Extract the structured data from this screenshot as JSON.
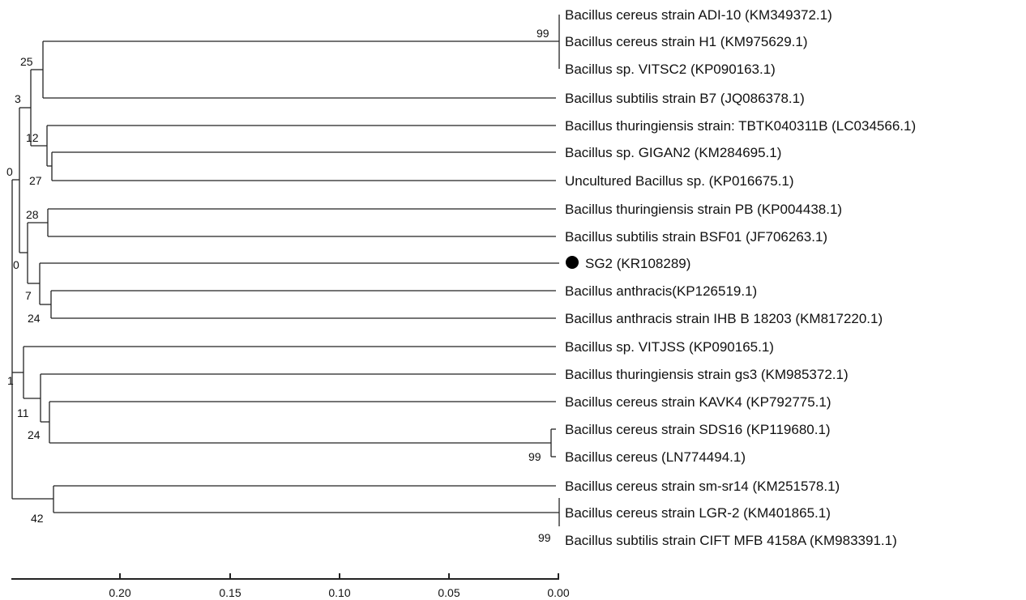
{
  "tree": {
    "leaves": [
      {
        "label": "Bacillus cereus strain ADI-10 (KM349372.1)"
      },
      {
        "label": "Bacillus cereus strain H1 (KM975629.1)"
      },
      {
        "label": "Bacillus sp. VITSC2 (KP090163.1)"
      },
      {
        "label": "Bacillus subtilis strain B7 (JQ086378.1)"
      },
      {
        "label": "Bacillus thuringiensis strain: TBTK040311B (LC034566.1)"
      },
      {
        "label": "Bacillus sp. GIGAN2 (KM284695.1)"
      },
      {
        "label": "Uncultured Bacillus sp. (KP016675.1)"
      },
      {
        "label": "Bacillus thuringiensis strain PB (KP004438.1)"
      },
      {
        "label": "Bacillus subtilis strain BSF01 (JF706263.1)"
      },
      {
        "label": "SG2 (KR108289)",
        "marker": "filled-circle"
      },
      {
        "label": "Bacillus anthracis(KP126519.1)"
      },
      {
        "label": "Bacillus anthracis strain IHB B 18203 (KM817220.1)"
      },
      {
        "label": "Bacillus sp. VITJSS (KP090165.1)"
      },
      {
        "label": "Bacillus thuringiensis strain gs3 (KM985372.1)"
      },
      {
        "label": "Bacillus cereus strain KAVK4 (KP792775.1)"
      },
      {
        "label": "Bacillus cereus strain SDS16 (KP119680.1)"
      },
      {
        "label": "Bacillus cereus (LN774494.1)"
      },
      {
        "label": "Bacillus cereus strain sm-sr14 (KM251578.1)"
      },
      {
        "label": "Bacillus cereus strain LGR-2 (KM401865.1)"
      },
      {
        "label": "Bacillus subtilis strain CIFT MFB 4158A (KM983391.1)"
      }
    ],
    "bootstrap_values": [
      "99",
      "25",
      "3",
      "12",
      "27",
      "0",
      "28",
      "0",
      "7",
      "24",
      "1",
      "11",
      "24",
      "99",
      "42",
      "99"
    ],
    "scale_ticks": [
      "0.20",
      "0.15",
      "0.10",
      "0.05",
      "0.00"
    ]
  },
  "colors": {
    "line": "#222222",
    "text": "#111111",
    "marker": "#000000",
    "background": "#ffffff"
  }
}
